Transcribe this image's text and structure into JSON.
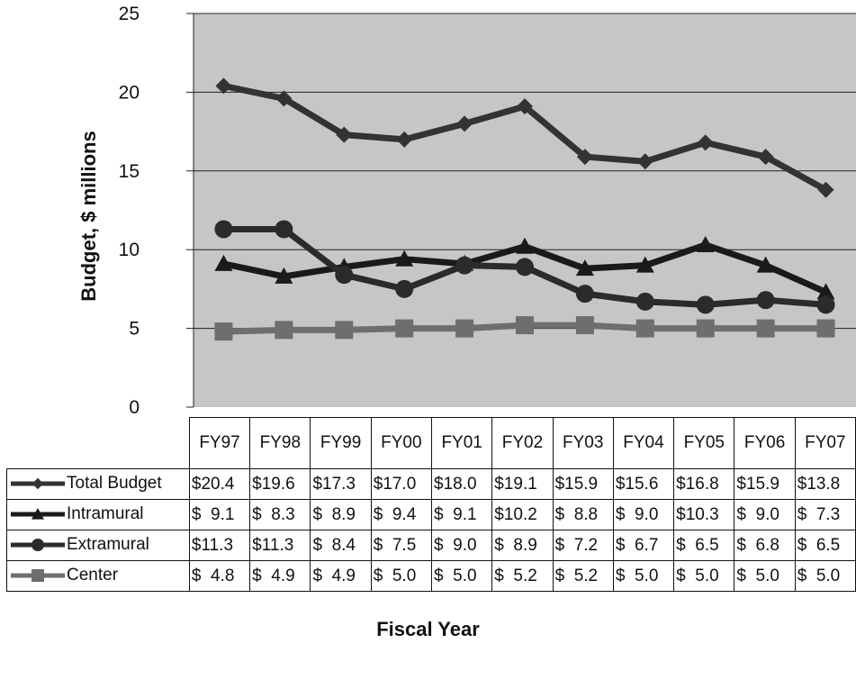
{
  "chart_data": {
    "type": "line",
    "title": "",
    "xlabel": "Fiscal Year",
    "ylabel": "Budget, $ millions",
    "ylim": [
      0,
      25
    ],
    "yticks": [
      "0",
      "5",
      "10",
      "15",
      "20",
      "25"
    ],
    "grid": true,
    "categories": [
      "FY97",
      "FY98",
      "FY99",
      "FY00",
      "FY01",
      "FY02",
      "FY03",
      "FY04",
      "FY05",
      "FY06",
      "FY07"
    ],
    "series": [
      {
        "name": "Total Budget",
        "marker": "diamond",
        "color": "#333333",
        "values": [
          20.4,
          19.6,
          17.3,
          17.0,
          18.0,
          19.1,
          15.9,
          15.6,
          16.8,
          15.9,
          13.8
        ],
        "labels": [
          "$20.4",
          "$19.6",
          "$17.3",
          "$17.0",
          "$18.0",
          "$19.1",
          "$15.9",
          "$15.6",
          "$16.8",
          "$15.9",
          "$13.8"
        ]
      },
      {
        "name": "Intramural",
        "marker": "triangle",
        "color": "#1a1a1a",
        "values": [
          9.1,
          8.3,
          8.9,
          9.4,
          9.1,
          10.2,
          8.8,
          9.0,
          10.3,
          9.0,
          7.3
        ],
        "labels": [
          "$  9.1",
          "$  8.3",
          "$  8.9",
          "$  9.4",
          "$  9.1",
          "$10.2",
          "$  8.8",
          "$  9.0",
          "$10.3",
          "$  9.0",
          "$  7.3"
        ]
      },
      {
        "name": "Extramural",
        "marker": "circle",
        "color": "#2b2b2b",
        "values": [
          11.3,
          11.3,
          8.4,
          7.5,
          9.0,
          8.9,
          7.2,
          6.7,
          6.5,
          6.8,
          6.5
        ],
        "labels": [
          "$11.3",
          "$11.3",
          "$  8.4",
          "$  7.5",
          "$  9.0",
          "$  8.9",
          "$  7.2",
          "$  6.7",
          "$  6.5",
          "$  6.8",
          "$  6.5"
        ]
      },
      {
        "name": "Center",
        "marker": "square",
        "color": "#6e6e6e",
        "values": [
          4.8,
          4.9,
          4.9,
          5.0,
          5.0,
          5.2,
          5.2,
          5.0,
          5.0,
          5.0,
          5.0
        ],
        "labels": [
          "$  4.8",
          "$  4.9",
          "$  4.9",
          "$  5.0",
          "$  5.0",
          "$  5.2",
          "$  5.2",
          "$  5.0",
          "$  5.0",
          "$  5.0",
          "$  5.0"
        ]
      }
    ],
    "plot_background": "#c6c6c6",
    "legend": "data-table-below"
  }
}
